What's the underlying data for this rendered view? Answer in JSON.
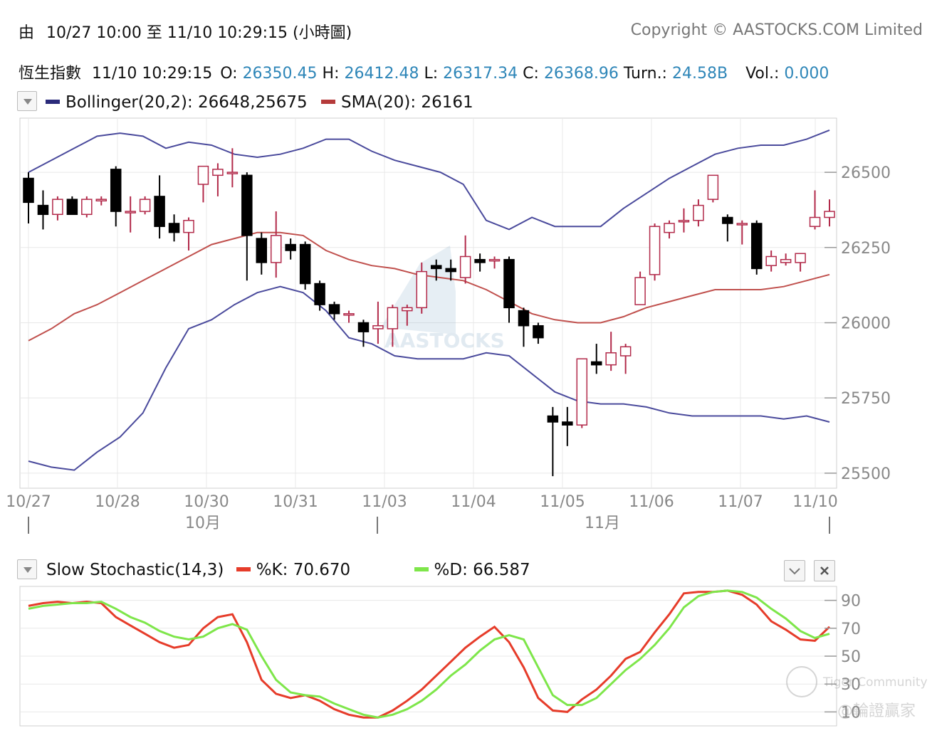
{
  "header": {
    "range_prefix": "由",
    "range_text": "10/27 10:00 至  11/10 10:29:15 (小時圖)",
    "copyright": "Copyright © AASTOCKS.COM Limited"
  },
  "quote": {
    "name": "恆生指數",
    "time": "11/10 10:29:15",
    "o_label": "O:",
    "o": "26350.45",
    "h_label": "H:",
    "h": "26412.48",
    "l_label": "L:",
    "l": "26317.34",
    "c_label": "C:",
    "c": "26368.96",
    "turn_label": "Turn.:",
    "turn": "24.58B",
    "vol_label": "Vol.:",
    "vol": "0.000"
  },
  "main_legend": {
    "bollinger": "Bollinger(20,2): 26648,25675",
    "sma": "SMA(20): 26161"
  },
  "stoch_legend": {
    "title": "Slow Stochastic(14,3)",
    "k": "%K: 70.670",
    "d": "%D: 66.587"
  },
  "watermark": {
    "text": "AASTOCKS",
    "tiger": "Tiger Community",
    "user": "@輪證贏家"
  },
  "colors": {
    "bollinger": "#4a4a9c",
    "sma": "#c0504d",
    "up": "#b22a4a",
    "down": "#000000",
    "k": "#e63c2a",
    "d": "#7ee64a",
    "axis_text": "#888888",
    "grid": "#e8e8e8"
  },
  "chart_data": [
    {
      "type": "candlestick",
      "title": "恆生指數",
      "ylim": [
        25450,
        26680
      ],
      "yticks": [
        25500,
        25750,
        26000,
        26250,
        26500
      ],
      "x_labels": [
        "10/27",
        "10/28",
        "10/30",
        "10/31",
        "11/03",
        "11/04",
        "11/05",
        "11/06",
        "11/07",
        "11/10"
      ],
      "month_labels": [
        "10月",
        "11月"
      ],
      "candles": [
        {
          "o": 26480,
          "h": 26500,
          "l": 26330,
          "c": 26400
        },
        {
          "o": 26390,
          "h": 26440,
          "l": 26310,
          "c": 26360
        },
        {
          "o": 26360,
          "h": 26420,
          "l": 26340,
          "c": 26410
        },
        {
          "o": 26410,
          "h": 26420,
          "l": 26360,
          "c": 26360
        },
        {
          "o": 26360,
          "h": 26420,
          "l": 26350,
          "c": 26410
        },
        {
          "o": 26405,
          "h": 26420,
          "l": 26390,
          "c": 26410
        },
        {
          "o": 26510,
          "h": 26520,
          "l": 26320,
          "c": 26370
        },
        {
          "o": 26370,
          "h": 26420,
          "l": 26300,
          "c": 26370
        },
        {
          "o": 26370,
          "h": 26420,
          "l": 26360,
          "c": 26410
        },
        {
          "o": 26420,
          "h": 26490,
          "l": 26280,
          "c": 26320
        },
        {
          "o": 26330,
          "h": 26360,
          "l": 26270,
          "c": 26300
        },
        {
          "o": 26300,
          "h": 26350,
          "l": 26240,
          "c": 26340
        },
        {
          "o": 26460,
          "h": 26510,
          "l": 26400,
          "c": 26520
        },
        {
          "o": 26490,
          "h": 26530,
          "l": 26420,
          "c": 26510
        },
        {
          "o": 26500,
          "h": 26580,
          "l": 26450,
          "c": 26500
        },
        {
          "o": 26490,
          "h": 26500,
          "l": 26140,
          "c": 26290
        },
        {
          "o": 26280,
          "h": 26300,
          "l": 26160,
          "c": 26200
        },
        {
          "o": 26200,
          "h": 26370,
          "l": 26150,
          "c": 26290
        },
        {
          "o": 26260,
          "h": 26280,
          "l": 26210,
          "c": 26240
        },
        {
          "o": 26260,
          "h": 26270,
          "l": 26110,
          "c": 26130
        },
        {
          "o": 26130,
          "h": 26140,
          "l": 26040,
          "c": 26060
        },
        {
          "o": 26060,
          "h": 26070,
          "l": 26010,
          "c": 26030
        },
        {
          "o": 26030,
          "h": 26040,
          "l": 26000,
          "c": 26030
        },
        {
          "o": 26000,
          "h": 26010,
          "l": 25920,
          "c": 25970
        },
        {
          "o": 25980,
          "h": 26070,
          "l": 25930,
          "c": 25990
        },
        {
          "o": 25980,
          "h": 26060,
          "l": 25920,
          "c": 26050
        },
        {
          "o": 26040,
          "h": 26060,
          "l": 25990,
          "c": 26050
        },
        {
          "o": 26050,
          "h": 26200,
          "l": 26030,
          "c": 26170
        },
        {
          "o": 26190,
          "h": 26210,
          "l": 26140,
          "c": 26180
        },
        {
          "o": 26180,
          "h": 26210,
          "l": 26140,
          "c": 26170
        },
        {
          "o": 26150,
          "h": 26290,
          "l": 26130,
          "c": 26220
        },
        {
          "o": 26210,
          "h": 26230,
          "l": 26170,
          "c": 26200
        },
        {
          "o": 26210,
          "h": 26220,
          "l": 26180,
          "c": 26210
        },
        {
          "o": 26210,
          "h": 26220,
          "l": 26000,
          "c": 26050
        },
        {
          "o": 26040,
          "h": 26050,
          "l": 25920,
          "c": 25990
        },
        {
          "o": 25990,
          "h": 26000,
          "l": 25930,
          "c": 25950
        },
        {
          "o": 25690,
          "h": 25720,
          "l": 25490,
          "c": 25670
        },
        {
          "o": 25670,
          "h": 25720,
          "l": 25590,
          "c": 25660
        },
        {
          "o": 25660,
          "h": 25880,
          "l": 25650,
          "c": 25880
        },
        {
          "o": 25870,
          "h": 25930,
          "l": 25830,
          "c": 25860
        },
        {
          "o": 25860,
          "h": 25970,
          "l": 25840,
          "c": 25900
        },
        {
          "o": 25890,
          "h": 25930,
          "l": 25830,
          "c": 25920
        },
        {
          "o": 26060,
          "h": 26170,
          "l": 26060,
          "c": 26150
        },
        {
          "o": 26160,
          "h": 26330,
          "l": 26140,
          "c": 26320
        },
        {
          "o": 26300,
          "h": 26340,
          "l": 26280,
          "c": 26330
        },
        {
          "o": 26340,
          "h": 26380,
          "l": 26300,
          "c": 26340
        },
        {
          "o": 26340,
          "h": 26410,
          "l": 26320,
          "c": 26390
        },
        {
          "o": 26410,
          "h": 26480,
          "l": 26400,
          "c": 26490
        },
        {
          "o": 26350,
          "h": 26360,
          "l": 26270,
          "c": 26330
        },
        {
          "o": 26330,
          "h": 26340,
          "l": 26260,
          "c": 26330
        },
        {
          "o": 26330,
          "h": 26340,
          "l": 26160,
          "c": 26180
        },
        {
          "o": 26190,
          "h": 26240,
          "l": 26170,
          "c": 26220
        },
        {
          "o": 26200,
          "h": 26230,
          "l": 26190,
          "c": 26210
        },
        {
          "o": 26200,
          "h": 26230,
          "l": 26170,
          "c": 26230
        },
        {
          "o": 26320,
          "h": 26440,
          "l": 26310,
          "c": 26350
        },
        {
          "o": 26350,
          "h": 26410,
          "l": 26320,
          "c": 26370
        }
      ],
      "bollinger_upper": [
        26500,
        26540,
        26580,
        26620,
        26630,
        26620,
        26580,
        26600,
        26590,
        26560,
        26550,
        26560,
        26580,
        26610,
        26610,
        26570,
        26540,
        26520,
        26500,
        26460,
        26340,
        26310,
        26350,
        26320,
        26320,
        26320,
        26380,
        26430,
        26480,
        26520,
        26560,
        26580,
        26590,
        26590,
        26610,
        26640
      ],
      "bollinger_mid": [
        25940,
        25980,
        26030,
        26060,
        26100,
        26140,
        26180,
        26220,
        26260,
        26280,
        26300,
        26300,
        26290,
        26240,
        26210,
        26190,
        26180,
        26160,
        26150,
        26140,
        26110,
        26070,
        26030,
        26010,
        26000,
        26000,
        26020,
        26050,
        26070,
        26090,
        26110,
        26110,
        26110,
        26120,
        26140,
        26160
      ],
      "bollinger_lower": [
        25540,
        25520,
        25510,
        25570,
        25620,
        25700,
        25850,
        25980,
        26010,
        26060,
        26100,
        26120,
        26100,
        26040,
        25950,
        25930,
        25890,
        25880,
        25880,
        25880,
        25900,
        25890,
        25830,
        25770,
        25740,
        25730,
        25730,
        25720,
        25700,
        25690,
        25690,
        25690,
        25690,
        25680,
        25690,
        25670
      ]
    },
    {
      "type": "line",
      "title": "Slow Stochastic(14,3)",
      "ylim": [
        0,
        100
      ],
      "yticks": [
        10,
        30,
        50,
        70,
        90
      ],
      "series": [
        {
          "name": "%K",
          "values": [
            86,
            88,
            89,
            88,
            89,
            88,
            78,
            72,
            66,
            60,
            56,
            58,
            70,
            78,
            80,
            60,
            33,
            23,
            20,
            22,
            18,
            12,
            8,
            6,
            6,
            11,
            18,
            26,
            36,
            46,
            56,
            64,
            71,
            60,
            42,
            20,
            11,
            10,
            19,
            26,
            36,
            48,
            53,
            67,
            80,
            95,
            96,
            96,
            97,
            94,
            87,
            75,
            69,
            62,
            61,
            71
          ]
        },
        {
          "name": "%D",
          "values": [
            84,
            86,
            87,
            88,
            88,
            89,
            84,
            78,
            74,
            68,
            64,
            62,
            64,
            70,
            73,
            69,
            50,
            33,
            24,
            22,
            21,
            16,
            12,
            8,
            6,
            8,
            12,
            18,
            26,
            36,
            44,
            54,
            62,
            65,
            62,
            42,
            22,
            15,
            15,
            20,
            30,
            40,
            48,
            58,
            70,
            85,
            93,
            96,
            97,
            96,
            92,
            84,
            77,
            68,
            63,
            66
          ]
        }
      ]
    }
  ]
}
